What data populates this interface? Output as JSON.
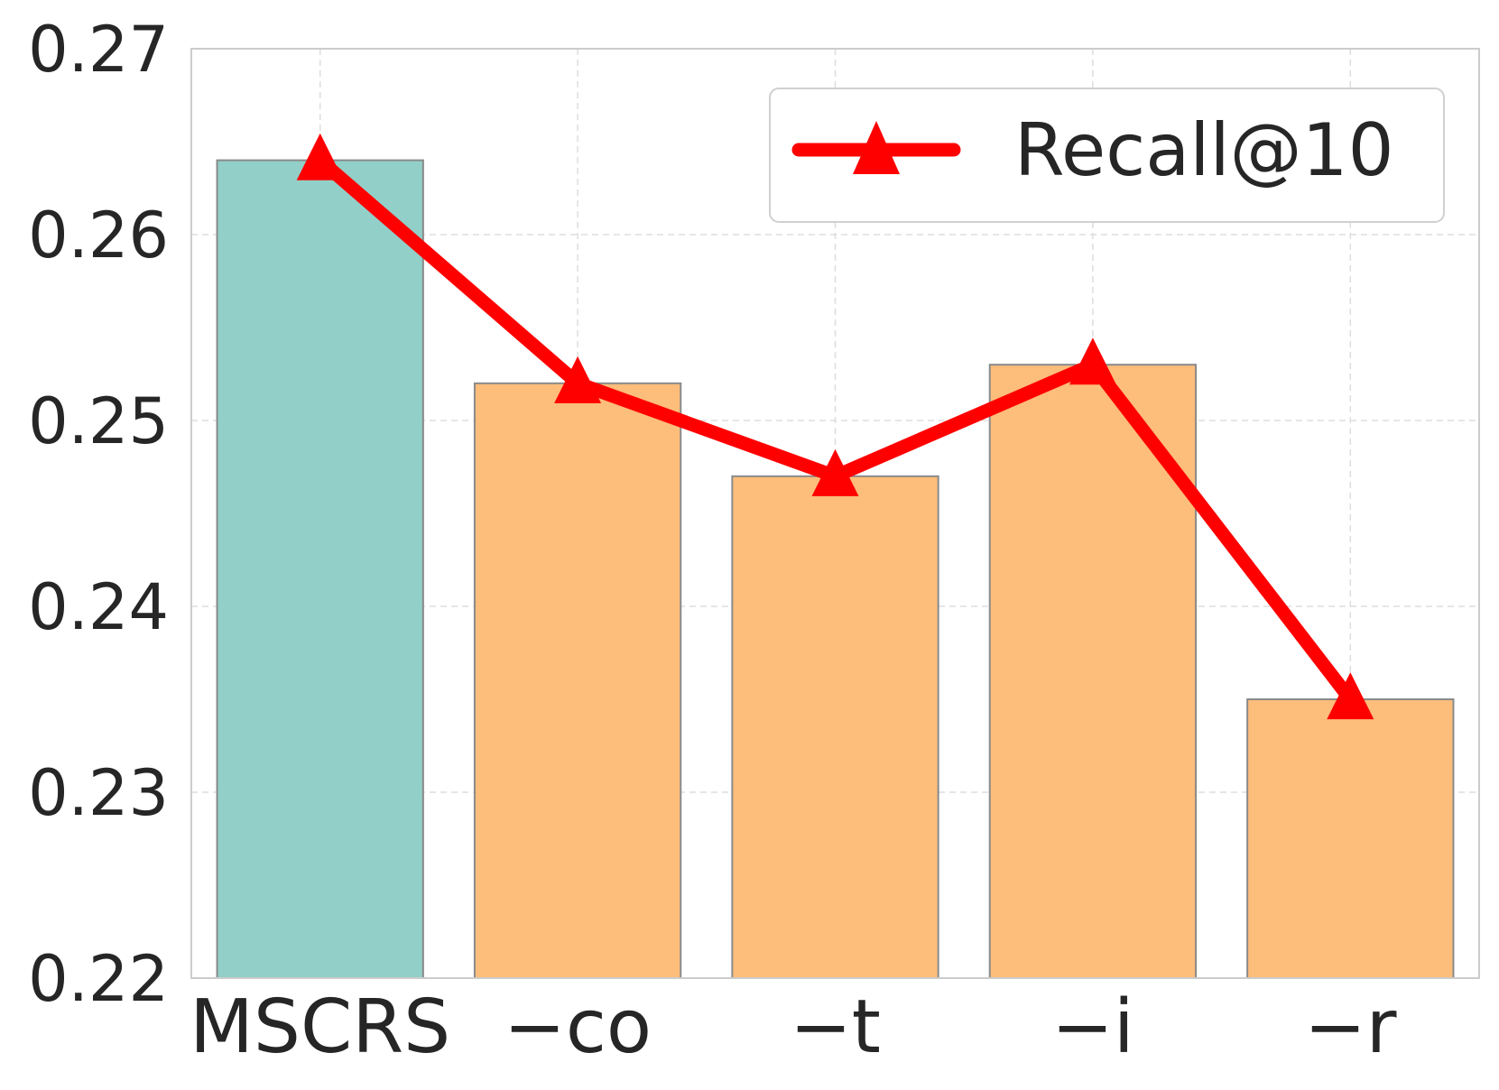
{
  "chart_data": {
    "type": "bar",
    "title": "",
    "xlabel": "",
    "ylabel": "",
    "categories": [
      "MSCRS",
      "−co",
      "−t",
      "−i",
      "−r"
    ],
    "series": [
      {
        "kind": "bar",
        "values": [
          0.264,
          0.252,
          0.247,
          0.253,
          0.235
        ]
      },
      {
        "kind": "line",
        "name": "Recall@10",
        "marker": "triangle",
        "values": [
          0.264,
          0.252,
          0.247,
          0.253,
          0.235
        ]
      }
    ],
    "bar_colors": [
      "#92cfc8",
      "#fdbd7b",
      "#fdbd7b",
      "#fdbd7b",
      "#fdbd7b"
    ],
    "line_color": "#ff0000",
    "ylim": [
      0.22,
      0.27
    ],
    "yticks": [
      "0.22",
      "0.23",
      "0.24",
      "0.25",
      "0.26",
      "0.27"
    ],
    "grid": true,
    "legend_position": "top-right"
  }
}
